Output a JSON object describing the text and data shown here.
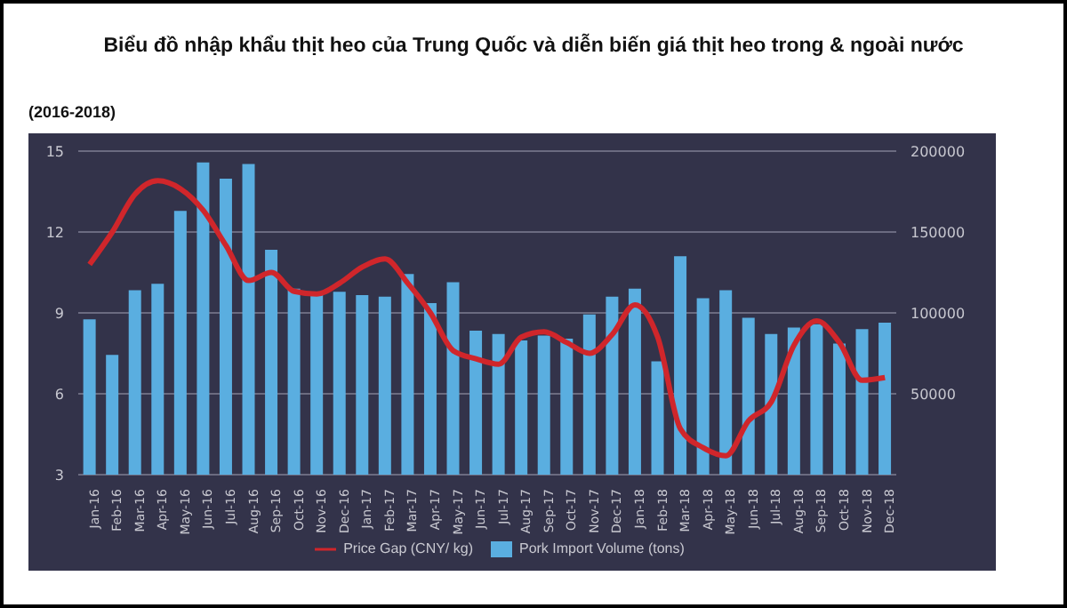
{
  "chart_data": {
    "type": "bar",
    "title": "Biểu đồ nhập khẩu thịt heo của Trung Quốc và diễn biến giá thịt heo trong & ngoài nước",
    "subtitle": "(2016-2018)",
    "categories": [
      "Jan-16",
      "Feb-16",
      "Mar-16",
      "Apr-16",
      "May-16",
      "Jun-16",
      "Jul-16",
      "Aug-16",
      "Sep-16",
      "Oct-16",
      "Nov-16",
      "Dec-16",
      "Jan-17",
      "Feb-17",
      "Mar-17",
      "Apr-17",
      "May-17",
      "Jun-17",
      "Jul-17",
      "Aug-17",
      "Sep-17",
      "Oct-17",
      "Nov-17",
      "Dec-17",
      "Jan-18",
      "Feb-18",
      "Mar-18",
      "Apr-18",
      "May-18",
      "Jun-18",
      "Jul-18",
      "Aug-18",
      "Sep-18",
      "Oct-18",
      "Nov-18",
      "Dec-18"
    ],
    "series": [
      {
        "name": "Price Gap  (CNY/ kg)",
        "type": "line",
        "color": "#d0262b",
        "values": [
          10.8,
          12.0,
          13.4,
          13.9,
          13.6,
          12.8,
          11.5,
          10.2,
          10.5,
          9.8,
          9.7,
          10.1,
          10.7,
          11.0,
          10.1,
          9.0,
          7.6,
          7.3,
          7.1,
          8.1,
          8.3,
          7.9,
          7.5,
          8.2,
          9.3,
          8.1,
          4.7,
          4.0,
          3.7,
          5.0,
          5.7,
          7.8,
          8.7,
          7.9,
          6.5,
          6.6
        ]
      },
      {
        "name": "Pork Import Volume (tons)",
        "axis": "y2",
        "color": "#5aaee0",
        "values": [
          96000,
          74000,
          114000,
          118000,
          163000,
          193000,
          183000,
          192000,
          139000,
          115000,
          113000,
          113000,
          111000,
          110000,
          124000,
          106000,
          119000,
          89000,
          87000,
          83000,
          86000,
          84000,
          99000,
          110000,
          115000,
          70000,
          135000,
          109000,
          114000,
          97000,
          87000,
          91000,
          93000,
          81000,
          90000,
          94000
        ]
      }
    ],
    "ylim": [
      3,
      15
    ],
    "yticks": [
      3,
      6,
      9,
      12,
      15
    ],
    "y2lim": [
      0,
      200000
    ],
    "y2ticks": [
      50000,
      100000,
      150000,
      200000
    ],
    "grid": "y",
    "legend": "bottom",
    "marker": "none",
    "line_style": "solid"
  }
}
